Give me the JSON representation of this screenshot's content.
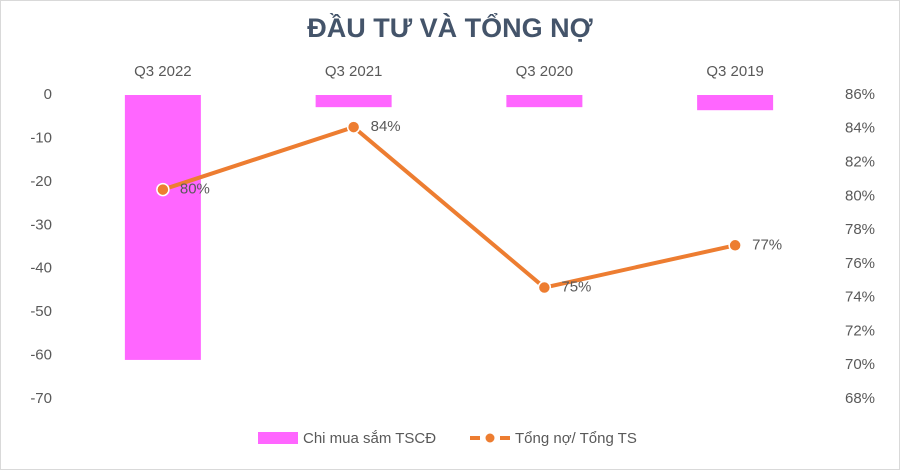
{
  "chart_data": {
    "type": "bar",
    "title": "ĐẦU TƯ VÀ TỔNG NỢ",
    "categories": [
      "Q3 2022",
      "Q3 2021",
      "Q3 2020",
      "Q3 2019"
    ],
    "series": [
      {
        "name": "Chi mua sắm TSCĐ",
        "type": "bar",
        "color": "#ff66ff",
        "values": [
          -61,
          -2.8,
          -2.8,
          -3.5
        ]
      },
      {
        "name": "Tổng nợ/ Tổng TS",
        "type": "line",
        "axis": "y2",
        "color": "#ed7d31",
        "values": [
          80.4,
          84.1,
          74.6,
          77.1
        ],
        "value_labels": [
          "80%",
          "84%",
          "75%",
          "77%"
        ]
      }
    ],
    "ylim": [
      -70,
      0
    ],
    "yticks": [
      0,
      -10,
      -20,
      -30,
      -40,
      -50,
      -60,
      -70
    ],
    "y2lim": [
      68,
      86
    ],
    "y2ticks": [
      {
        "value": 86,
        "label": "86%"
      },
      {
        "value": 84,
        "label": "84%"
      },
      {
        "value": 82,
        "label": "82%"
      },
      {
        "value": 80,
        "label": "80%"
      },
      {
        "value": 78,
        "label": "78%"
      },
      {
        "value": 76,
        "label": "76%"
      },
      {
        "value": 74,
        "label": "74%"
      },
      {
        "value": 72,
        "label": "72%"
      },
      {
        "value": 70,
        "label": "70%"
      },
      {
        "value": 68,
        "label": "68%"
      }
    ],
    "legend": "bottom"
  }
}
